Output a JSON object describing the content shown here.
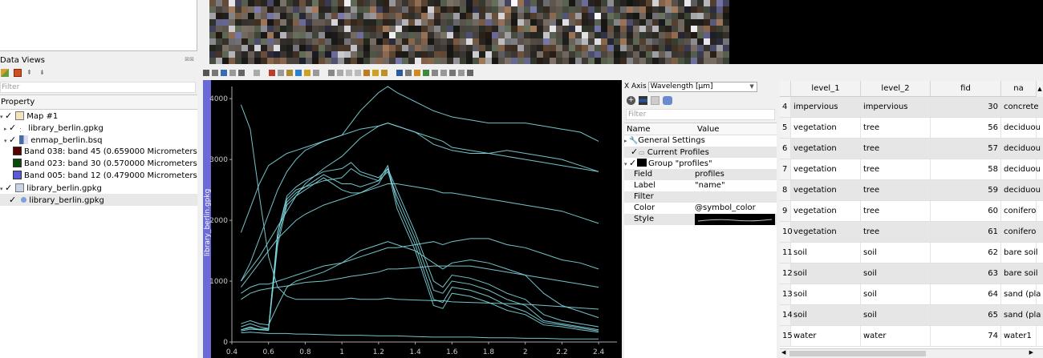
{
  "data_views": {
    "title": "Data Views",
    "filter_placeholder": "Filter",
    "tree_header": "Property",
    "items": [
      {
        "label": "Map #1",
        "kind": "map"
      },
      {
        "label": "library_berlin.gpkg",
        "kind": "vector"
      },
      {
        "label": "enmap_berlin.bsq",
        "kind": "raster"
      },
      {
        "label": "Band 038: band 45 (0.659000 Micrometers)",
        "kind": "band",
        "color": "#5a0000"
      },
      {
        "label": "Band 023: band 30 (0.570000 Micrometers)",
        "kind": "band",
        "color": "#0a4a0a"
      },
      {
        "label": "Band 005: band 12 (0.479000 Micrometers)",
        "kind": "band",
        "color": "#5a5ad8"
      },
      {
        "label": "library_berlin.gpkg",
        "kind": "layer"
      },
      {
        "label": "library_berlin.gpkg",
        "kind": "layer-item"
      }
    ]
  },
  "spectral_plot": {
    "side_label": "library_berlin.gpkg",
    "line_color": "#7fd8e0"
  },
  "chart_data": {
    "type": "line",
    "title": "",
    "xlabel": "",
    "ylabel": "",
    "xlim": [
      0.4,
      2.5
    ],
    "ylim": [
      0,
      4200
    ],
    "x_ticks": [
      "0.4",
      "0.6",
      "0.8",
      "1",
      "1.2",
      "1.4",
      "1.6",
      "1.8",
      "2",
      "2.2",
      "2.4"
    ],
    "y_ticks": [
      "0",
      "1000",
      "2000",
      "3000",
      "4000"
    ],
    "x": [
      0.45,
      0.5,
      0.55,
      0.6,
      0.65,
      0.7,
      0.75,
      0.8,
      0.9,
      1.0,
      1.05,
      1.1,
      1.2,
      1.25,
      1.3,
      1.4,
      1.5,
      1.55,
      1.6,
      1.7,
      1.8,
      1.9,
      2.0,
      2.1,
      2.2,
      2.3,
      2.4
    ],
    "series": [
      {
        "values": [
          3900,
          3500,
          2400,
          1400,
          900,
          750,
          700,
          700,
          700,
          700,
          720,
          700,
          700,
          720,
          700,
          690,
          680,
          680,
          660,
          650,
          640,
          630,
          620,
          600,
          580,
          560,
          540
        ]
      },
      {
        "values": [
          1800,
          2200,
          2600,
          2900,
          3000,
          3100,
          3150,
          3200,
          3300,
          3400,
          3450,
          3500,
          3550,
          3600,
          3550,
          3450,
          3350,
          3300,
          3200,
          3150,
          3100,
          3050,
          3000,
          2950,
          2900,
          2850,
          2800
        ]
      },
      {
        "values": [
          1000,
          1300,
          1700,
          2100,
          2500,
          2800,
          3000,
          3150,
          3300,
          3400,
          3600,
          3800,
          4100,
          4200,
          4100,
          3950,
          3800,
          3750,
          3700,
          3650,
          3600,
          3600,
          3600,
          3550,
          3500,
          3450,
          3300
        ]
      },
      {
        "values": [
          1000,
          1200,
          1400,
          1650,
          1900,
          2150,
          2400,
          2600,
          2850,
          3050,
          3200,
          3350,
          3550,
          3600,
          3550,
          3450,
          3250,
          3200,
          3150,
          3100,
          3100,
          3150,
          3100,
          3050,
          3000,
          2900,
          2800
        ]
      },
      {
        "values": [
          900,
          1100,
          1300,
          1500,
          1700,
          1850,
          2000,
          2100,
          2250,
          2350,
          2400,
          2450,
          2550,
          2600,
          2600,
          2550,
          2500,
          2450,
          2450,
          2400,
          2350,
          2300,
          2250,
          2200,
          2150,
          2050,
          1950
        ]
      },
      {
        "values": [
          250,
          300,
          250,
          220,
          1800,
          2400,
          2550,
          2650,
          2800,
          2850,
          2950,
          2800,
          2700,
          2850,
          2500,
          1800,
          1000,
          900,
          1100,
          1050,
          950,
          800,
          700,
          450,
          350,
          300,
          250
        ]
      },
      {
        "values": [
          200,
          250,
          200,
          200,
          1800,
          2350,
          2500,
          2550,
          2650,
          2700,
          2850,
          2750,
          2650,
          2800,
          2400,
          1700,
          850,
          800,
          1000,
          950,
          850,
          700,
          600,
          350,
          300,
          250,
          200
        ]
      },
      {
        "values": [
          200,
          230,
          210,
          220,
          1700,
          2300,
          2450,
          2550,
          2750,
          2600,
          2600,
          2550,
          2650,
          2900,
          2300,
          1600,
          700,
          650,
          900,
          850,
          750,
          600,
          500,
          320,
          280,
          230,
          180
        ]
      },
      {
        "values": [
          180,
          210,
          200,
          190,
          1600,
          2250,
          2400,
          2500,
          2700,
          2500,
          2450,
          2450,
          2600,
          2850,
          2200,
          1500,
          600,
          550,
          800,
          750,
          650,
          520,
          450,
          280,
          250,
          200,
          160
        ]
      },
      {
        "values": [
          800,
          900,
          950,
          950,
          1000,
          1050,
          1100,
          1150,
          1250,
          1300,
          1350,
          1400,
          1500,
          1550,
          1550,
          1600,
          1650,
          1600,
          1650,
          1700,
          1700,
          1600,
          1550,
          1450,
          1350,
          1300,
          1200
        ]
      },
      {
        "values": [
          700,
          800,
          850,
          880,
          900,
          920,
          950,
          980,
          1000,
          1050,
          1080,
          1100,
          1150,
          1200,
          1200,
          1220,
          1250,
          1250,
          1250,
          1250,
          1200,
          1150,
          1100,
          1050,
          1000,
          950,
          900
        ]
      },
      {
        "values": [
          150,
          160,
          150,
          140,
          140,
          140,
          130,
          130,
          120,
          110,
          110,
          110,
          100,
          100,
          100,
          90,
          80,
          80,
          80,
          80,
          70,
          70,
          60,
          60,
          50,
          50,
          50
        ]
      },
      {
        "values": [
          300,
          350,
          300,
          280,
          600,
          900,
          1000,
          1050,
          1150,
          1300,
          1400,
          1500,
          1600,
          1650,
          1600,
          1500,
          1300,
          1200,
          1300,
          1350,
          1300,
          1200,
          1100,
          800,
          600,
          500,
          400
        ]
      }
    ]
  },
  "settings": {
    "xaxis_label": "X Axis",
    "xaxis_value": "Wavelength [µm]",
    "filter_placeholder": "Filter",
    "col_name": "Name",
    "col_value": "Value",
    "rows": [
      {
        "name": "General Settings",
        "value": ""
      },
      {
        "name": "Current Profiles",
        "value": ""
      },
      {
        "name": "Group \"profiles\"",
        "value": ""
      },
      {
        "name": "Field",
        "value": "profiles"
      },
      {
        "name": "Label",
        "value": "\"name\""
      },
      {
        "name": "Filter",
        "value": ""
      },
      {
        "name": "Color",
        "value": "@symbol_color"
      },
      {
        "name": "Style",
        "value": ""
      }
    ]
  },
  "attribute_table": {
    "headers": [
      "level_1",
      "level_2",
      "fid",
      "na"
    ],
    "rows": [
      {
        "rn": "4",
        "level_1": "impervious",
        "level_2": "impervious",
        "fid": "30",
        "name": "concrete"
      },
      {
        "rn": "5",
        "level_1": "vegetation",
        "level_2": "tree",
        "fid": "56",
        "name": "deciduou"
      },
      {
        "rn": "6",
        "level_1": "vegetation",
        "level_2": "tree",
        "fid": "57",
        "name": "deciduou"
      },
      {
        "rn": "7",
        "level_1": "vegetation",
        "level_2": "tree",
        "fid": "58",
        "name": "deciduou"
      },
      {
        "rn": "8",
        "level_1": "vegetation",
        "level_2": "tree",
        "fid": "59",
        "name": "deciduou"
      },
      {
        "rn": "9",
        "level_1": "vegetation",
        "level_2": "tree",
        "fid": "60",
        "name": "conifero"
      },
      {
        "rn": "10",
        "level_1": "vegetation",
        "level_2": "tree",
        "fid": "61",
        "name": "conifero"
      },
      {
        "rn": "11",
        "level_1": "soil",
        "level_2": "soil",
        "fid": "62",
        "name": "bare soil"
      },
      {
        "rn": "12",
        "level_1": "soil",
        "level_2": "soil",
        "fid": "63",
        "name": "bare soil"
      },
      {
        "rn": "13",
        "level_1": "soil",
        "level_2": "soil",
        "fid": "64",
        "name": "sand (pla"
      },
      {
        "rn": "14",
        "level_1": "soil",
        "level_2": "soil",
        "fid": "65",
        "name": "sand (pla"
      },
      {
        "rn": "15",
        "level_1": "water",
        "level_2": "water",
        "fid": "74",
        "name": "water1"
      }
    ]
  }
}
